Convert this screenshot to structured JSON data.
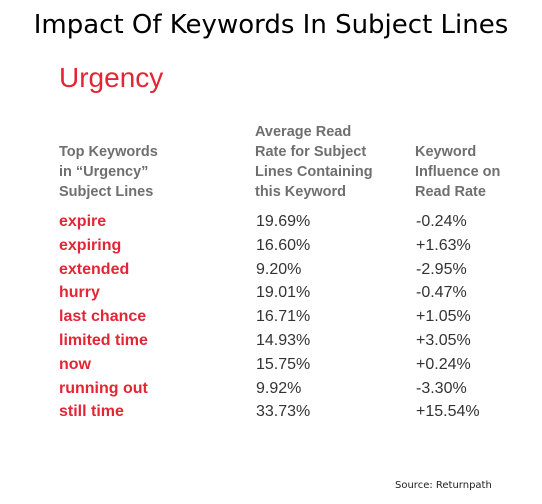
{
  "title": "Impact Of Keywords In Subject Lines",
  "section_title": "Urgency",
  "headers": {
    "col1": [
      "Top Keywords",
      "in “Urgency”",
      "Subject Lines"
    ],
    "col2": [
      "Average Read",
      "Rate for Subject",
      "Lines Containing",
      "this Keyword"
    ],
    "col3": [
      "Keyword",
      "Influence on",
      "Read Rate"
    ]
  },
  "rows": [
    {
      "keyword": "expire",
      "rate": "19.69%",
      "influence": "-0.24%"
    },
    {
      "keyword": "expiring",
      "rate": "16.60%",
      "influence": "+1.63%"
    },
    {
      "keyword": "extended",
      "rate": "9.20%",
      "influence": "-2.95%"
    },
    {
      "keyword": "hurry",
      "rate": "19.01%",
      "influence": "-0.47%"
    },
    {
      "keyword": "last chance",
      "rate": "16.71%",
      "influence": "+1.05%"
    },
    {
      "keyword": "limited time",
      "rate": "14.93%",
      "influence": "+3.05%"
    },
    {
      "keyword": "now",
      "rate": "15.75%",
      "influence": "+0.24%"
    },
    {
      "keyword": "running out",
      "rate": "9.92%",
      "influence": "-3.30%"
    },
    {
      "keyword": "still time",
      "rate": "33.73%",
      "influence": "+15.54%"
    }
  ],
  "source": "Source: Returnpath",
  "colors": {
    "accent": "#e32636",
    "header_text": "#6f6f6f",
    "value_text": "#333333"
  }
}
